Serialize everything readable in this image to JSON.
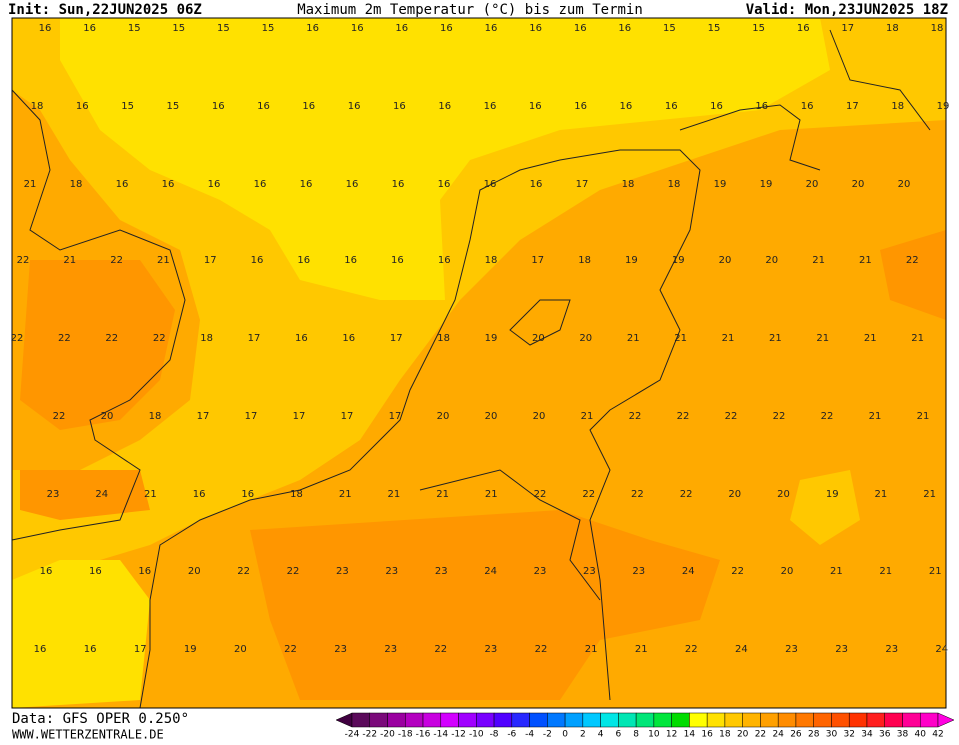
{
  "header": {
    "init": "Init: Sun,22JUN2025 06Z",
    "title": "Maximum 2m Temperatur (°C) bis zum Termin",
    "valid": "Valid: Mon,23JUN2025 18Z"
  },
  "map": {
    "rows": [
      [
        16,
        16,
        15,
        15,
        15,
        15,
        16,
        16,
        16,
        16,
        16,
        16,
        16,
        16,
        15,
        15,
        15,
        16,
        17,
        18,
        18
      ],
      [
        18,
        16,
        15,
        15,
        16,
        16,
        16,
        16,
        16,
        16,
        16,
        16,
        16,
        16,
        16,
        16,
        16,
        16,
        17,
        18,
        19
      ],
      [
        21,
        18,
        16,
        16,
        16,
        16,
        16,
        16,
        16,
        16,
        16,
        16,
        17,
        18,
        18,
        19,
        19,
        20,
        20,
        20
      ],
      [
        22,
        21,
        22,
        21,
        17,
        16,
        16,
        16,
        16,
        16,
        18,
        17,
        18,
        19,
        19,
        20,
        20,
        21,
        21,
        22
      ],
      [
        22,
        22,
        22,
        22,
        18,
        17,
        16,
        16,
        17,
        18,
        19,
        20,
        20,
        21,
        21,
        21,
        21,
        21,
        21,
        21
      ],
      [
        22,
        20,
        18,
        17,
        17,
        17,
        17,
        17,
        20,
        20,
        20,
        21,
        22,
        22,
        22,
        22,
        22,
        21,
        21
      ],
      [
        23,
        24,
        21,
        16,
        16,
        18,
        21,
        21,
        21,
        21,
        22,
        22,
        22,
        22,
        20,
        20,
        19,
        21,
        21
      ],
      [
        16,
        16,
        16,
        20,
        22,
        22,
        23,
        23,
        23,
        24,
        23,
        23,
        23,
        24,
        22,
        20,
        21,
        21,
        21
      ],
      [
        16,
        16,
        17,
        19,
        20,
        22,
        23,
        23,
        22,
        23,
        22,
        21,
        21,
        22,
        24,
        23,
        23,
        23,
        24
      ]
    ]
  },
  "colorbar": {
    "labels": [
      -24,
      -22,
      -20,
      -18,
      -16,
      -14,
      -12,
      -10,
      -8,
      -6,
      -4,
      -2,
      0,
      2,
      4,
      6,
      8,
      10,
      12,
      14,
      16,
      18,
      20,
      22,
      24,
      26,
      28,
      30,
      32,
      34,
      36,
      38,
      40,
      42
    ]
  },
  "footer": {
    "data": "Data: GFS OPER 0.250°",
    "site": "WWW.WETTERZENTRALE.DE"
  }
}
